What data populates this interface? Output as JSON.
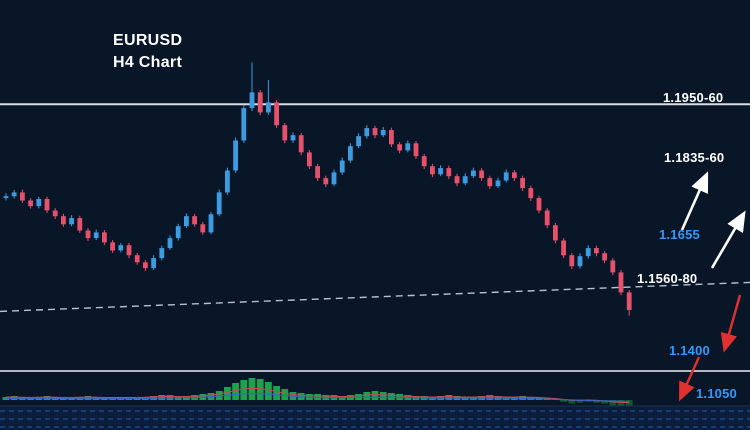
{
  "app": {
    "symbol": "EURUSD",
    "timeframe_label": "H4 Chart"
  },
  "levels": {
    "resistance": {
      "label": "1.1950-60",
      "color": "#ffffff"
    },
    "upper_target": {
      "label": "1.1835-60",
      "color": "#ffffff"
    },
    "minor_level": {
      "label": "1.1655",
      "color": "#2e9bff"
    },
    "support": {
      "label": "1.1560-80",
      "color": "#ffffff"
    },
    "lower_target_1": {
      "label": "1.1400",
      "color": "#2e9bff"
    },
    "lower_target_2": {
      "label": "1.1050",
      "color": "#2e9bff"
    }
  },
  "colors": {
    "background": "#081628",
    "bull_candle": "#3f9be0",
    "bear_candle": "#e8516b",
    "histogram_positive": "#1aa24d",
    "histogram_negative": "#0c5a2c",
    "signal_red": "#c44a55",
    "signal_blue": "#3a63c8",
    "level_line": "#d6dde6",
    "trendline": "#b9c3cf",
    "arrow_up": "#ffffff",
    "arrow_down": "#e03030"
  },
  "chart_data": {
    "type": "candlestick",
    "title": "EURUSD H4 Chart",
    "symbol": "EURUSD",
    "timeframe": "H4",
    "ylim": [
      1.1394,
      1.2171
    ],
    "horizontal_level": {
      "price": 1.1952,
      "label": "1.1950-60"
    },
    "trendline": {
      "style": "dashed",
      "start_price": 1.1517,
      "end_price": 1.1578
    },
    "annotations": [
      {
        "text": "1.1950-60",
        "kind": "resistance"
      },
      {
        "text": "1.1835-60",
        "kind": "target-up"
      },
      {
        "text": "1.1655",
        "kind": "level"
      },
      {
        "text": "1.1560-80",
        "kind": "support"
      },
      {
        "text": "1.1400",
        "kind": "target-down"
      },
      {
        "text": "1.1050",
        "kind": "target-down"
      }
    ],
    "candles": [
      [
        1.1755,
        1.1765,
        1.175,
        1.1759
      ],
      [
        1.1759,
        1.1772,
        1.1754,
        1.1767
      ],
      [
        1.1767,
        1.1773,
        1.1745,
        1.175
      ],
      [
        1.175,
        1.1755,
        1.1733,
        1.1738
      ],
      [
        1.1738,
        1.1758,
        1.1733,
        1.1753
      ],
      [
        1.1753,
        1.1758,
        1.1724,
        1.1729
      ],
      [
        1.1729,
        1.1734,
        1.1711,
        1.1717
      ],
      [
        1.1717,
        1.1722,
        1.1695,
        1.17
      ],
      [
        1.17,
        1.1719,
        1.1696,
        1.1713
      ],
      [
        1.1713,
        1.1718,
        1.1682,
        1.1687
      ],
      [
        1.1687,
        1.1692,
        1.1665,
        1.1671
      ],
      [
        1.1671,
        1.1689,
        1.1667,
        1.1683
      ],
      [
        1.1683,
        1.1688,
        1.1656,
        1.1662
      ],
      [
        1.1662,
        1.1667,
        1.164,
        1.1645
      ],
      [
        1.1645,
        1.1661,
        1.1641,
        1.1656
      ],
      [
        1.1656,
        1.1661,
        1.1629,
        1.1635
      ],
      [
        1.1635,
        1.164,
        1.1615,
        1.162
      ],
      [
        1.162,
        1.1625,
        1.1602,
        1.1608
      ],
      [
        1.1608,
        1.1635,
        1.1604,
        1.1629
      ],
      [
        1.1629,
        1.1655,
        1.1624,
        1.165
      ],
      [
        1.165,
        1.1677,
        1.1646,
        1.1671
      ],
      [
        1.1671,
        1.1701,
        1.1666,
        1.1696
      ],
      [
        1.1696,
        1.1723,
        1.1692,
        1.1717
      ],
      [
        1.1717,
        1.1722,
        1.1695,
        1.17
      ],
      [
        1.17,
        1.1705,
        1.1678,
        1.1683
      ],
      [
        1.1683,
        1.1726,
        1.1679,
        1.1721
      ],
      [
        1.1721,
        1.1773,
        1.1717,
        1.1767
      ],
      [
        1.1767,
        1.1819,
        1.1762,
        1.1813
      ],
      [
        1.1813,
        1.1882,
        1.1808,
        1.1876
      ],
      [
        1.1876,
        1.1951,
        1.1871,
        1.1944
      ],
      [
        1.1944,
        1.204,
        1.1938,
        1.1977
      ],
      [
        1.1977,
        1.1982,
        1.1929,
        1.1935
      ],
      [
        1.1935,
        1.2003,
        1.193,
        1.1956
      ],
      [
        1.1956,
        1.1961,
        1.1902,
        1.1908
      ],
      [
        1.1908,
        1.1913,
        1.187,
        1.1876
      ],
      [
        1.1876,
        1.1893,
        1.1871,
        1.1887
      ],
      [
        1.1887,
        1.1892,
        1.1845,
        1.1851
      ],
      [
        1.1851,
        1.1856,
        1.1816,
        1.1822
      ],
      [
        1.1822,
        1.1827,
        1.1791,
        1.1797
      ],
      [
        1.1797,
        1.1802,
        1.1778,
        1.1784
      ],
      [
        1.1784,
        1.1815,
        1.178,
        1.1809
      ],
      [
        1.1809,
        1.184,
        1.1804,
        1.1834
      ],
      [
        1.1834,
        1.187,
        1.1829,
        1.1864
      ],
      [
        1.1864,
        1.1891,
        1.186,
        1.1885
      ],
      [
        1.1885,
        1.1908,
        1.188,
        1.1902
      ],
      [
        1.1902,
        1.1907,
        1.1881,
        1.1887
      ],
      [
        1.1887,
        1.1904,
        1.1883,
        1.1898
      ],
      [
        1.1898,
        1.1903,
        1.1862,
        1.1868
      ],
      [
        1.1868,
        1.1873,
        1.1849,
        1.1855
      ],
      [
        1.1855,
        1.1876,
        1.1851,
        1.187
      ],
      [
        1.187,
        1.1875,
        1.1837,
        1.1843
      ],
      [
        1.1843,
        1.1848,
        1.1816,
        1.1822
      ],
      [
        1.1822,
        1.1827,
        1.1799,
        1.1805
      ],
      [
        1.1805,
        1.1824,
        1.1801,
        1.1818
      ],
      [
        1.1818,
        1.1823,
        1.1795,
        1.1801
      ],
      [
        1.1801,
        1.1806,
        1.178,
        1.1786
      ],
      [
        1.1786,
        1.1807,
        1.1782,
        1.1801
      ],
      [
        1.1801,
        1.1819,
        1.1797,
        1.1813
      ],
      [
        1.1813,
        1.1818,
        1.1791,
        1.1797
      ],
      [
        1.1797,
        1.1802,
        1.1774,
        1.178
      ],
      [
        1.178,
        1.1798,
        1.1776,
        1.1792
      ],
      [
        1.1792,
        1.1815,
        1.1788,
        1.1809
      ],
      [
        1.1809,
        1.1814,
        1.1791,
        1.1797
      ],
      [
        1.1797,
        1.1802,
        1.177,
        1.1776
      ],
      [
        1.1776,
        1.1781,
        1.1749,
        1.1755
      ],
      [
        1.1755,
        1.176,
        1.1723,
        1.1729
      ],
      [
        1.1729,
        1.1734,
        1.1692,
        1.1698
      ],
      [
        1.1698,
        1.1703,
        1.166,
        1.1666
      ],
      [
        1.1666,
        1.1671,
        1.1629,
        1.1635
      ],
      [
        1.1635,
        1.164,
        1.1606,
        1.1612
      ],
      [
        1.1612,
        1.1639,
        1.1607,
        1.1633
      ],
      [
        1.1633,
        1.1656,
        1.1628,
        1.165
      ],
      [
        1.165,
        1.1655,
        1.1633,
        1.1639
      ],
      [
        1.1639,
        1.1644,
        1.1618,
        1.1624
      ],
      [
        1.1624,
        1.1629,
        1.1593,
        1.1599
      ],
      [
        1.1599,
        1.1604,
        1.1551,
        1.1557
      ],
      [
        1.1557,
        1.1562,
        1.1508,
        1.152
      ]
    ],
    "indicator": {
      "type": "macd_histogram",
      "values": [
        3,
        4,
        3,
        2,
        3,
        4,
        3,
        2,
        2,
        3,
        4,
        3,
        2,
        2,
        3,
        2,
        2,
        3,
        4,
        5,
        5,
        4,
        4,
        5,
        6,
        7,
        9,
        13,
        17,
        20,
        22,
        21,
        18,
        14,
        11,
        8,
        7,
        6,
        6,
        5,
        5,
        4,
        5,
        6,
        8,
        9,
        8,
        7,
        6,
        5,
        4,
        4,
        3,
        4,
        5,
        4,
        3,
        3,
        4,
        5,
        4,
        3,
        3,
        4,
        3,
        2,
        2,
        1,
        -2,
        -4,
        -3,
        -2,
        -3,
        -4,
        -6,
        -8,
        -7
      ]
    }
  }
}
